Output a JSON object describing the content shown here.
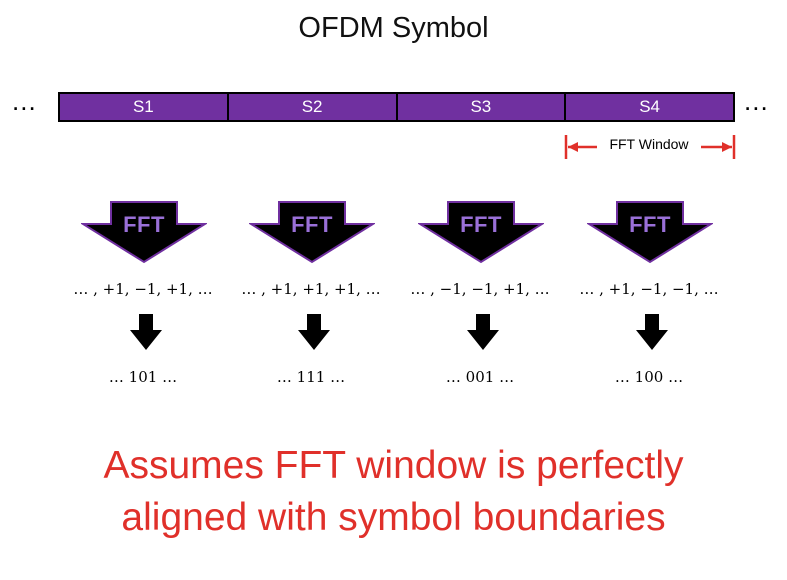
{
  "title": "OFDM Symbol",
  "ellipsis": "...",
  "symbols": [
    "S1",
    "S2",
    "S3",
    "S4"
  ],
  "fft_window_label": "FFT Window",
  "fft_label": "FFT",
  "columns": [
    {
      "values": "… , +1, −1, +1, …",
      "bits": "… 101 …"
    },
    {
      "values": "… , +1, +1, +1, …",
      "bits": "… 111 …"
    },
    {
      "values": "… , −1, −1, +1, …",
      "bits": "… 001 …"
    },
    {
      "values": "… , +1, −1, −1, …",
      "bits": "… 100 …"
    }
  ],
  "note_line1": "Assumes FFT window is perfectly",
  "note_line2": "aligned with symbol boundaries",
  "colors": {
    "symbol_fill": "#7030a0",
    "arrow_outline": "#7030a0",
    "fft_text": "#9a70d8",
    "note": "#e0302a",
    "window_marker": "#e0302a"
  }
}
